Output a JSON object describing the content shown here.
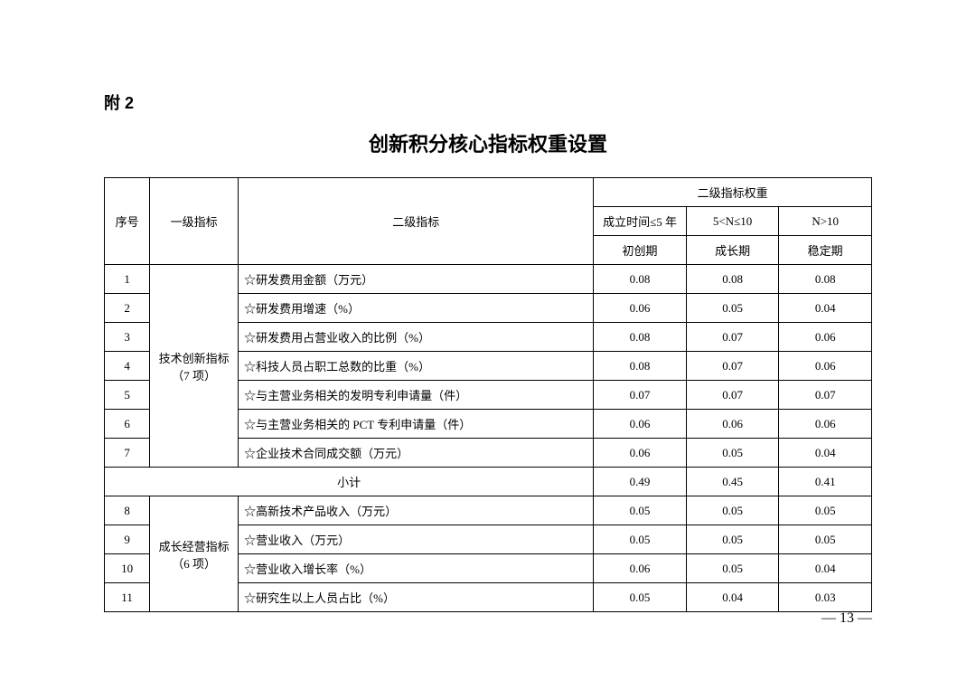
{
  "appendix": "附 2",
  "title": "创新积分核心指标权重设置",
  "header": {
    "seq": "序号",
    "level1": "一级指标",
    "level2": "二级指标",
    "weight_group": "二级指标权重",
    "period_cols": [
      "成立时间≤5 年",
      "5<N≤10",
      "N>10"
    ],
    "period_labels": [
      "初创期",
      "成长期",
      "稳定期"
    ]
  },
  "group1": {
    "label": "技术创新指标（7 项）",
    "rows": [
      {
        "seq": "1",
        "name": "☆研发费用金额（万元）",
        "w": [
          "0.08",
          "0.08",
          "0.08"
        ]
      },
      {
        "seq": "2",
        "name": "☆研发费用增速（%）",
        "w": [
          "0.06",
          "0.05",
          "0.04"
        ]
      },
      {
        "seq": "3",
        "name": "☆研发费用占营业收入的比例（%）",
        "w": [
          "0.08",
          "0.07",
          "0.06"
        ]
      },
      {
        "seq": "4",
        "name": "☆科技人员占职工总数的比重（%）",
        "w": [
          "0.08",
          "0.07",
          "0.06"
        ]
      },
      {
        "seq": "5",
        "name": "☆与主营业务相关的发明专利申请量（件）",
        "w": [
          "0.07",
          "0.07",
          "0.07"
        ]
      },
      {
        "seq": "6",
        "name": "☆与主营业务相关的 PCT 专利申请量（件）",
        "w": [
          "0.06",
          "0.06",
          "0.06"
        ]
      },
      {
        "seq": "7",
        "name": "☆企业技术合同成交额（万元）",
        "w": [
          "0.06",
          "0.05",
          "0.04"
        ]
      }
    ],
    "subtotal": {
      "label": "小计",
      "w": [
        "0.49",
        "0.45",
        "0.41"
      ]
    }
  },
  "group2": {
    "label": "成长经营指标（6 项）",
    "rows": [
      {
        "seq": "8",
        "name": "☆高新技术产品收入（万元）",
        "w": [
          "0.05",
          "0.05",
          "0.05"
        ]
      },
      {
        "seq": "9",
        "name": "☆营业收入（万元）",
        "w": [
          "0.05",
          "0.05",
          "0.05"
        ]
      },
      {
        "seq": "10",
        "name": "☆营业收入增长率（%）",
        "w": [
          "0.06",
          "0.05",
          "0.04"
        ]
      },
      {
        "seq": "11",
        "name": "☆研究生以上人员占比（%）",
        "w": [
          "0.05",
          "0.04",
          "0.03"
        ]
      }
    ]
  },
  "page_number": "— 13 —"
}
